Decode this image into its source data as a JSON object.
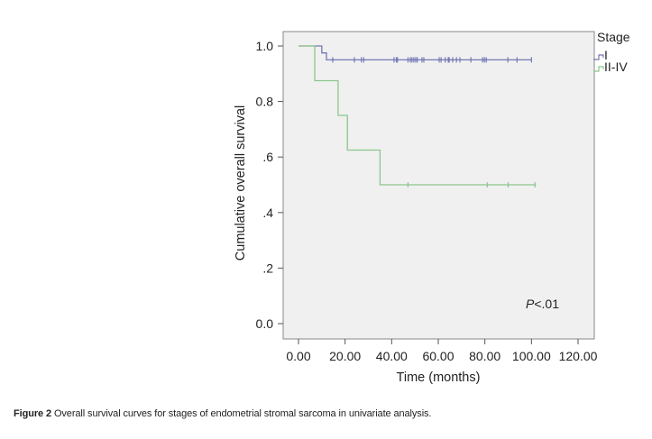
{
  "chart_data": {
    "type": "line",
    "subtype": "kaplan-meier-step",
    "title": "",
    "xlabel": "Time (months)",
    "ylabel": "Cumulative overall survival",
    "xlim": [
      0,
      120
    ],
    "ylim": [
      0,
      1.0
    ],
    "x_ticks": [
      0,
      20,
      40,
      60,
      80,
      100,
      120
    ],
    "x_tick_labels": [
      "0.00",
      "20.00",
      "40.00",
      "60.00",
      "80.00",
      "100.00",
      "120.00"
    ],
    "y_ticks": [
      0,
      0.2,
      0.4,
      0.6,
      0.8,
      1.0
    ],
    "y_tick_labels": [
      "0.0",
      ".2",
      ".4",
      ".6",
      "0.8",
      "1.0"
    ],
    "grid": false,
    "legend": {
      "title": "Stage",
      "placement": "right-top-outside",
      "entries": [
        "I",
        "II-IV"
      ]
    },
    "annotation": {
      "text_italic": "P",
      "text_rest": "<.01",
      "placement": "bottom-right"
    },
    "series": [
      {
        "name": "I",
        "color": "#7378b4",
        "steps": [
          {
            "t": 0,
            "s": 1.0
          },
          {
            "t": 10,
            "s": 0.975
          },
          {
            "t": 12,
            "s": 0.95
          }
        ],
        "end_t": 100,
        "censored": [
          14.7,
          24,
          27,
          28,
          41,
          42,
          42.5,
          47,
          48,
          48.7,
          49.5,
          50.3,
          51,
          53,
          53.8,
          60.4,
          61.2,
          63,
          64.3,
          64.7,
          66.2,
          67.8,
          69.3,
          74,
          79,
          79.8,
          80.6,
          89.9,
          93.8,
          100
        ]
      },
      {
        "name": "II-IV",
        "color": "#8cc68c",
        "steps": [
          {
            "t": 0,
            "s": 1.0
          },
          {
            "t": 7,
            "s": 0.875
          },
          {
            "t": 17,
            "s": 0.75
          },
          {
            "t": 21,
            "s": 0.625
          },
          {
            "t": 35,
            "s": 0.5
          }
        ],
        "end_t": 102,
        "censored": [
          47,
          81,
          90,
          101.5
        ]
      }
    ]
  },
  "caption": {
    "label": "Figure 2",
    "text": " Overall survival curves for stages of endometrial stromal sarcoma in univariate analysis."
  }
}
